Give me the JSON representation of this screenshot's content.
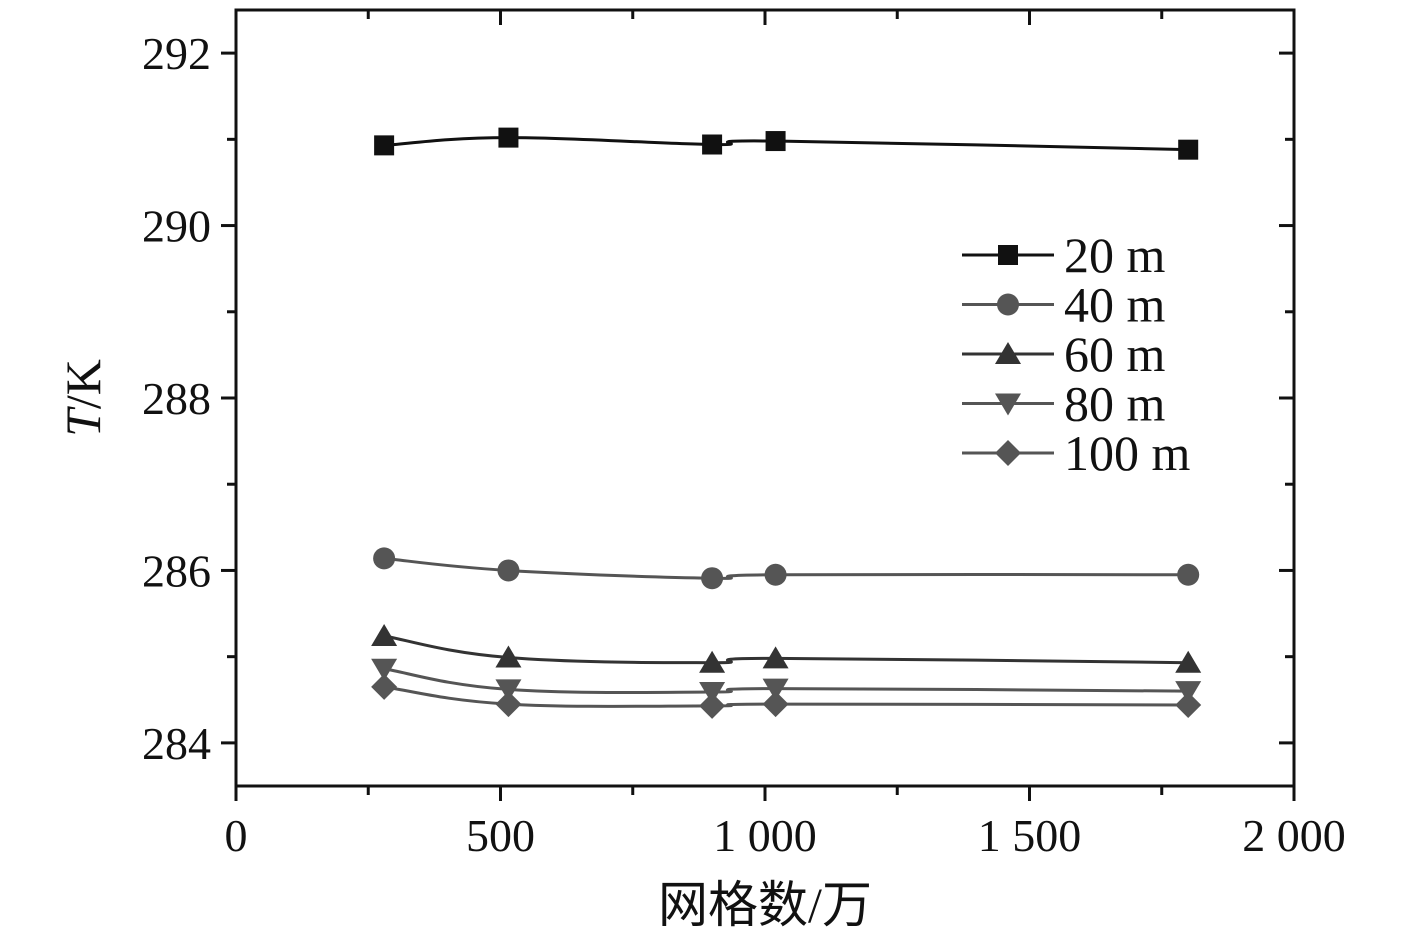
{
  "chart_data": {
    "type": "line",
    "title": "",
    "xlabel": "网格数/万",
    "ylabel": "T/K",
    "ylabel_parts": {
      "italic": "T",
      "rest": "/K"
    },
    "xlim": [
      0,
      2000
    ],
    "ylim": [
      283.5,
      292.5
    ],
    "x_ticks": [
      0,
      500,
      1000,
      1500,
      2000
    ],
    "x_tick_labels": [
      "0",
      "500",
      "1 000",
      "1 500",
      "2 000"
    ],
    "x_minor_ticks": [
      250,
      750,
      1250,
      1750
    ],
    "y_ticks": [
      284,
      286,
      288,
      290,
      292
    ],
    "y_tick_labels": [
      "284",
      "286",
      "288",
      "290",
      "292"
    ],
    "y_minor_ticks": [
      285,
      287,
      289,
      291
    ],
    "grid": false,
    "legend_position": "upper-right",
    "x": [
      280,
      515,
      900,
      1020,
      1800
    ],
    "series": [
      {
        "name": "20 m",
        "marker": "square",
        "color": "#111111",
        "values": [
          290.93,
          291.02,
          290.94,
          290.98,
          290.88
        ]
      },
      {
        "name": "40 m",
        "marker": "circle",
        "color": "#555555",
        "values": [
          286.14,
          286.0,
          285.91,
          285.95,
          285.95
        ]
      },
      {
        "name": "60 m",
        "marker": "triangle-up",
        "color": "#333333",
        "values": [
          285.24,
          284.99,
          284.93,
          284.98,
          284.93
        ]
      },
      {
        "name": "80 m",
        "marker": "triangle-down",
        "color": "#555555",
        "values": [
          284.86,
          284.62,
          284.59,
          284.63,
          284.6
        ]
      },
      {
        "name": "100 m",
        "marker": "diamond",
        "color": "#555555",
        "values": [
          284.65,
          284.45,
          284.43,
          284.45,
          284.44
        ]
      }
    ]
  }
}
